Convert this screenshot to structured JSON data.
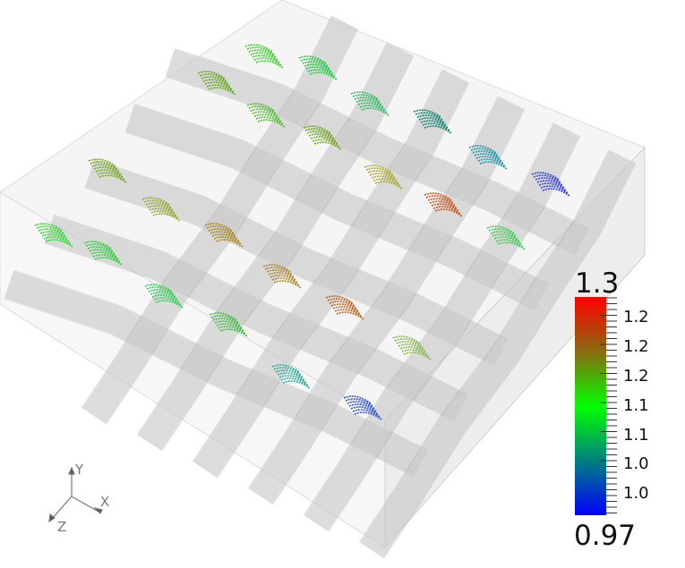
{
  "colorbar": {
    "max_label": "1.3",
    "min_label": "0.97",
    "tick_labels": [
      "1.2",
      "1.2",
      "1.2",
      "1.1",
      "1.1",
      "1.0",
      "1.0"
    ],
    "colors": [
      "#ff0000",
      "#8a6a10",
      "#00ff00",
      "#008080",
      "#0000ff"
    ]
  },
  "axes": {
    "x": "X",
    "y": "Y",
    "z": "Z"
  },
  "colors": {
    "tube": "#c8c8c8",
    "box": "#e6e6e6",
    "background": "#ffffff"
  }
}
